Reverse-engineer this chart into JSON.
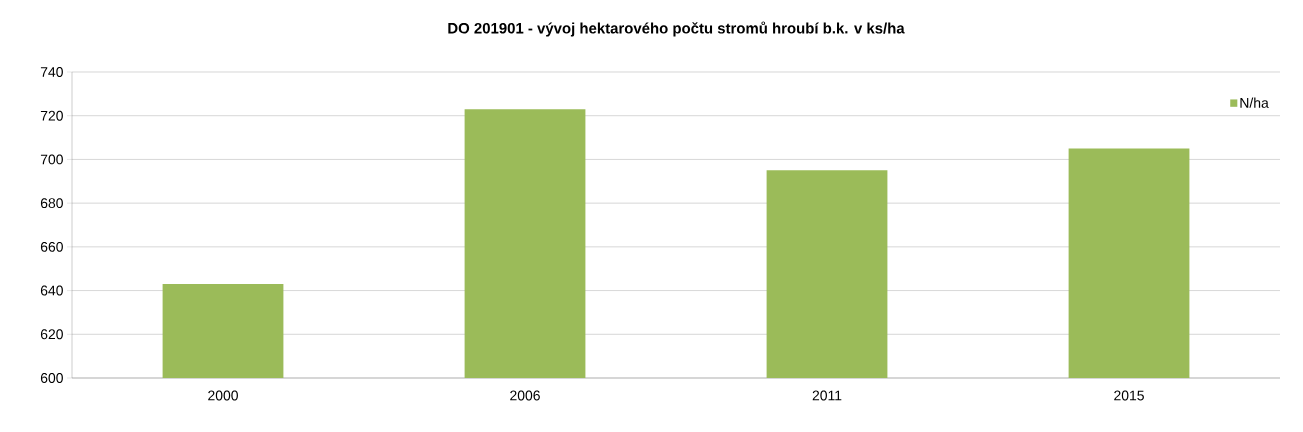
{
  "chart_data": {
    "type": "bar",
    "title": "DO 201901 - vývoj hektarového počtu stromů hroubí b.k. v ks/ha",
    "categories": [
      "2000",
      "2006",
      "2011",
      "2015"
    ],
    "series": [
      {
        "name": "N/ha",
        "color": "#9bbb59",
        "values": [
          643,
          723,
          695,
          705
        ]
      }
    ],
    "ylim": [
      600,
      740
    ],
    "yticks": [
      600,
      620,
      640,
      660,
      680,
      700,
      720,
      740
    ],
    "grid": "y",
    "legend": "top right"
  }
}
